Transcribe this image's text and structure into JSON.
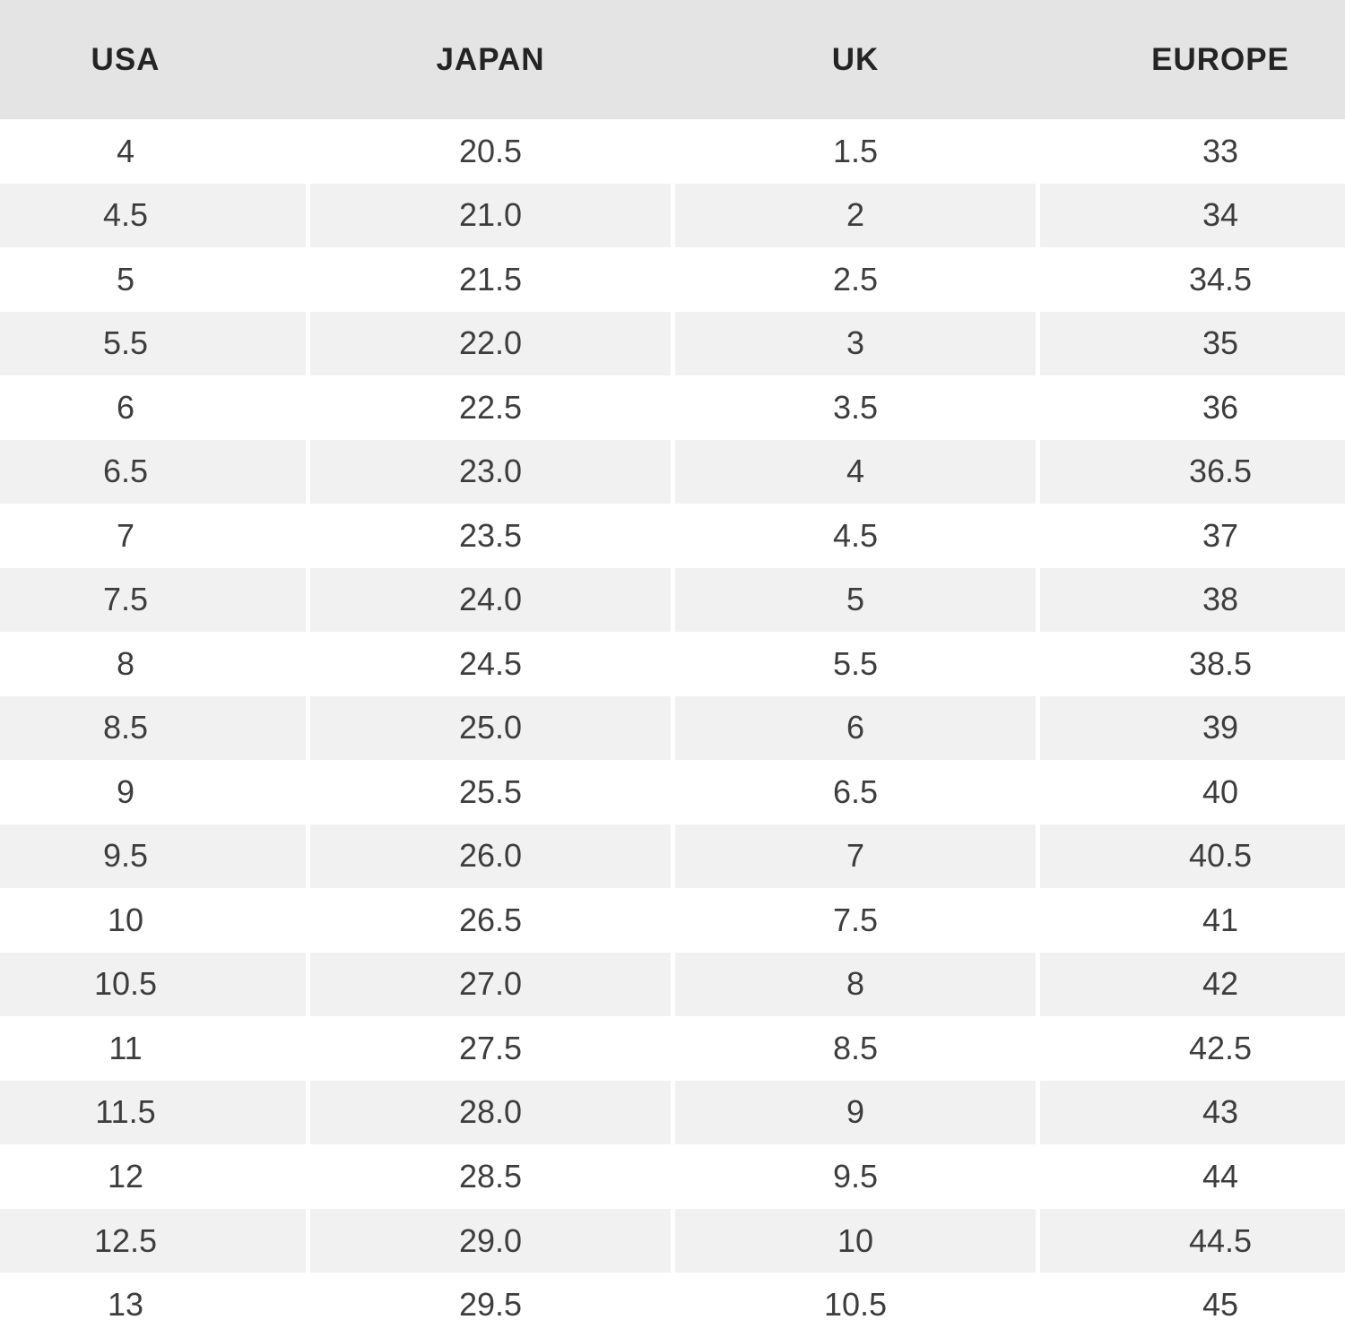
{
  "chart_data": {
    "type": "table",
    "columns": [
      "USA",
      "JAPAN",
      "UK",
      "EUROPE"
    ],
    "rows": [
      [
        "4",
        "20.5",
        "1.5",
        "33"
      ],
      [
        "4.5",
        "21.0",
        "2",
        "34"
      ],
      [
        "5",
        "21.5",
        "2.5",
        "34.5"
      ],
      [
        "5.5",
        "22.0",
        "3",
        "35"
      ],
      [
        "6",
        "22.5",
        "3.5",
        "36"
      ],
      [
        "6.5",
        "23.0",
        "4",
        "36.5"
      ],
      [
        "7",
        "23.5",
        "4.5",
        "37"
      ],
      [
        "7.5",
        "24.0",
        "5",
        "38"
      ],
      [
        "8",
        "24.5",
        "5.5",
        "38.5"
      ],
      [
        "8.5",
        "25.0",
        "6",
        "39"
      ],
      [
        "9",
        "25.5",
        "6.5",
        "40"
      ],
      [
        "9.5",
        "26.0",
        "7",
        "40.5"
      ],
      [
        "10",
        "26.5",
        "7.5",
        "41"
      ],
      [
        "10.5",
        "27.0",
        "8",
        "42"
      ],
      [
        "11",
        "27.5",
        "8.5",
        "42.5"
      ],
      [
        "11.5",
        "28.0",
        "9",
        "43"
      ],
      [
        "12",
        "28.5",
        "9.5",
        "44"
      ],
      [
        "12.5",
        "29.0",
        "10",
        "44.5"
      ],
      [
        "13",
        "29.5",
        "10.5",
        "45"
      ]
    ],
    "layout": {
      "header_position": "top",
      "row_striping": "white / light-gray alternating, starting white",
      "grid": "thin white gutters between columns, visible on gray rows"
    }
  },
  "colors": {
    "page_bg": "#ffffff",
    "header_bg": "#e4e4e4",
    "header_text": "#242424",
    "cell_text": "#3d3d3d",
    "row_even_bg": "#ffffff",
    "row_odd_bg": "#f1f1f1"
  }
}
